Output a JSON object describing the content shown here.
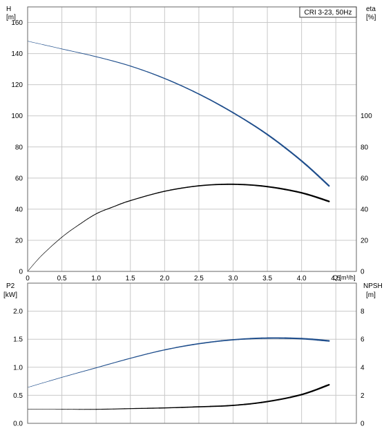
{
  "chart_data": [
    {
      "type": "line",
      "title": "CRI 3-23, 50Hz",
      "xlabel": "Q [m³/h]",
      "ylabel_left": [
        "H",
        "[m]"
      ],
      "ylabel_right": [
        "eta",
        "[%]"
      ],
      "xlim": [
        0,
        4.8
      ],
      "ylim": [
        0,
        170
      ],
      "y2lim": [
        0,
        170
      ],
      "xticks": [
        "0",
        "0.5",
        "1.0",
        "1.5",
        "2.0",
        "2.5",
        "3.0",
        "3.5",
        "4.0",
        "4.5"
      ],
      "yticks": [
        "0",
        "20",
        "40",
        "60",
        "80",
        "100",
        "120",
        "140",
        "160"
      ],
      "y2ticks": [
        "0",
        "20",
        "40",
        "60",
        "80",
        "100"
      ],
      "grid": true,
      "series": [
        {
          "axis": "left",
          "color": "#1f4e8c",
          "x": [
            0,
            0.5,
            1.0,
            1.5,
            2.0,
            2.5,
            3.0,
            3.5,
            4.0,
            4.4
          ],
          "y": [
            148,
            143,
            138,
            132,
            124,
            114,
            102,
            88,
            71,
            55
          ]
        },
        {
          "axis": "right",
          "color": "#000000",
          "x": [
            0,
            0.2,
            0.5,
            0.75,
            1.0,
            1.25,
            1.5,
            2.0,
            2.5,
            3.0,
            3.5,
            4.0,
            4.4
          ],
          "y": [
            0,
            10,
            22,
            30,
            37,
            41.5,
            45.5,
            51.5,
            55,
            56,
            54.5,
            50.5,
            45
          ]
        }
      ]
    },
    {
      "type": "line",
      "ylabel_left": [
        "P2",
        "[kW]"
      ],
      "ylabel_right": [
        "NPSH",
        "[m]"
      ],
      "xlim": [
        0,
        4.8
      ],
      "ylim": [
        0,
        2.5
      ],
      "y2lim": [
        0,
        10
      ],
      "yticks": [
        "0.0",
        "0.5",
        "1.0",
        "1.5",
        "2.0"
      ],
      "y2ticks": [
        "0",
        "2",
        "4",
        "6",
        "8"
      ],
      "grid": true,
      "series": [
        {
          "axis": "left",
          "color": "#1f4e8c",
          "x": [
            0,
            0.5,
            1.0,
            1.5,
            2.0,
            2.5,
            3.0,
            3.5,
            4.0,
            4.4
          ],
          "y": [
            0.64,
            0.82,
            0.99,
            1.16,
            1.31,
            1.42,
            1.49,
            1.52,
            1.51,
            1.47
          ]
        },
        {
          "axis": "right",
          "color": "#000000",
          "x": [
            0,
            0.5,
            1.0,
            1.5,
            2.0,
            2.5,
            3.0,
            3.5,
            4.0,
            4.4
          ],
          "y": [
            1.0,
            1.0,
            1.0,
            1.05,
            1.1,
            1.18,
            1.28,
            1.55,
            2.05,
            2.75
          ]
        }
      ]
    }
  ]
}
